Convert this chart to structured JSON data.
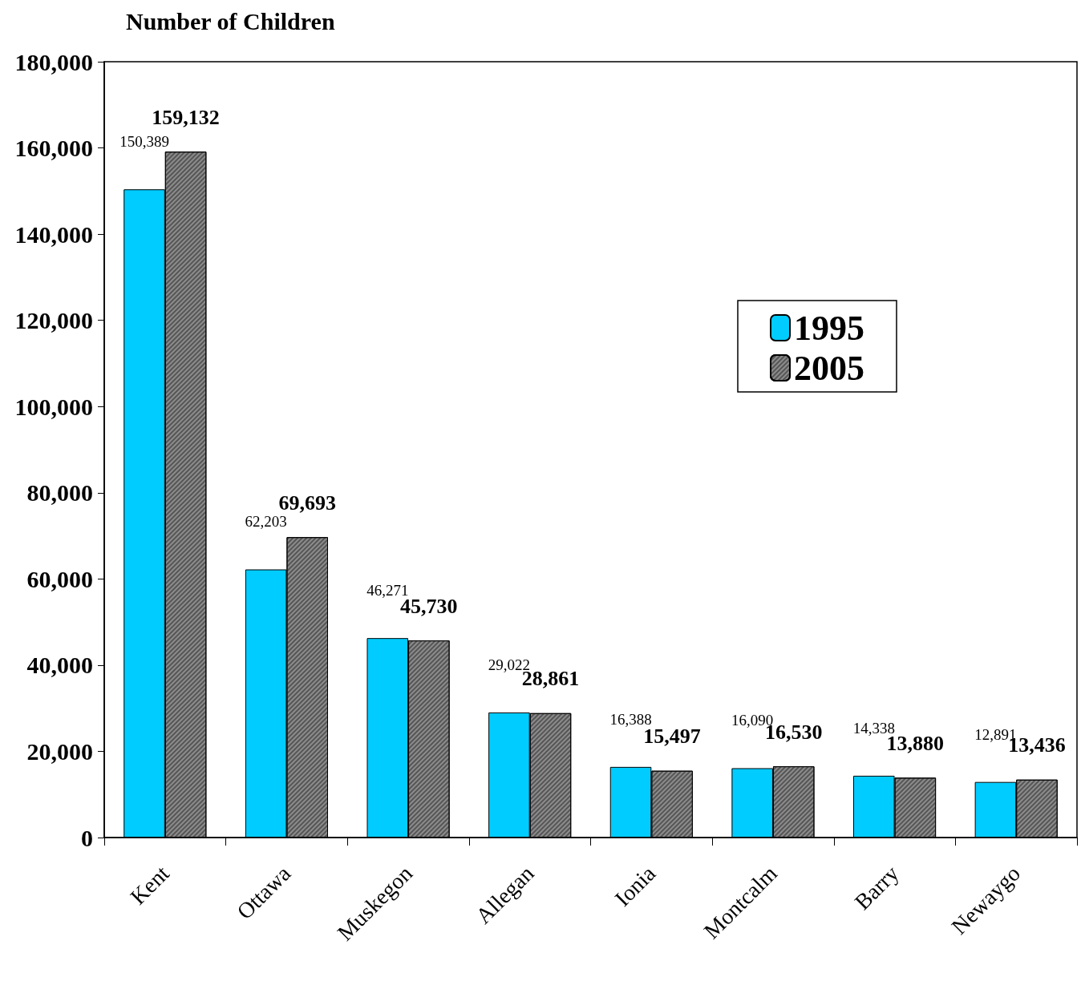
{
  "chart_data": {
    "type": "bar",
    "ylabel": "Number of Children",
    "categories": [
      "Kent",
      "Ottawa",
      "Muskegon",
      "Allegan",
      "Ionia",
      "Montcalm",
      "Barry",
      "Newaygo"
    ],
    "series": [
      {
        "name": "1995",
        "color": "#00ccff",
        "values": [
          150389,
          62203,
          46271,
          29022,
          16388,
          16090,
          14338,
          12891
        ],
        "value_labels": [
          "150,389",
          "62,203",
          "46,271",
          "29,022",
          "16,388",
          "16,090",
          "14,338",
          "12,891"
        ]
      },
      {
        "name": "2005",
        "color": "#8c8c8c",
        "values": [
          159132,
          69693,
          45730,
          28861,
          15497,
          16530,
          13880,
          13436
        ],
        "value_labels": [
          "159,132",
          "69,693",
          "45,730",
          "28,861",
          "15,497",
          "16,530",
          "13,880",
          "13,436"
        ]
      }
    ],
    "ylim": [
      0,
      180000
    ],
    "yticks": [
      0,
      {
        "value": 20000,
        "label": "20,000"
      },
      {
        "value": 40000,
        "label": "40,000"
      },
      {
        "value": 60000,
        "label": "60,000"
      },
      {
        "value": 80000,
        "label": "80,000"
      },
      {
        "value": 100000,
        "label": "100,000"
      },
      {
        "value": 120000,
        "label": "120,000"
      },
      {
        "value": 140000,
        "label": "140,000"
      },
      {
        "value": 160000,
        "label": "160,000"
      },
      {
        "value": 180000,
        "label": "180,000"
      }
    ],
    "grid": false,
    "legend": "right"
  }
}
